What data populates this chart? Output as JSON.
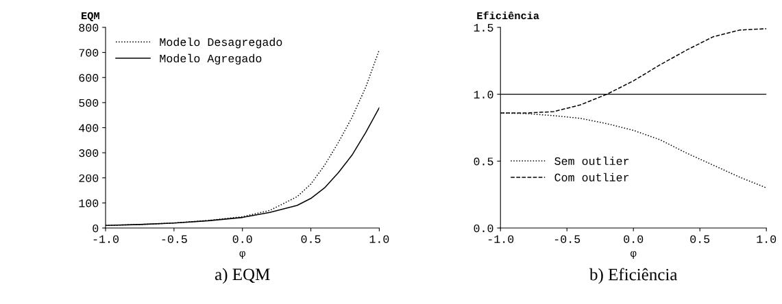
{
  "chart_data": [
    {
      "type": "line",
      "ylabel": "EQM",
      "xlabel": "φ",
      "annotations": [
        "a) EQM"
      ],
      "xlim": [
        -1.0,
        1.0
      ],
      "xticks": [
        {
          "value": -1.0,
          "label": "-1.0"
        },
        {
          "value": -0.5,
          "label": "-0.5"
        },
        {
          "value": 0.0,
          "label": "0.0"
        },
        {
          "value": 0.5,
          "label": "0.5"
        },
        {
          "value": 1.0,
          "label": "1.0"
        }
      ],
      "ylim": [
        0,
        800
      ],
      "yticks": [
        0,
        100,
        200,
        300,
        400,
        500,
        600,
        700,
        800
      ],
      "grid": false,
      "legend": "top left",
      "x": [
        -1.0,
        -0.75,
        -0.5,
        -0.25,
        0.0,
        0.2,
        0.4,
        0.5,
        0.6,
        0.7,
        0.8,
        0.9,
        1.0
      ],
      "series": [
        {
          "name": "Modelo Desagregado",
          "color": "#000000",
          "line_style": "dotted",
          "values": [
            10,
            14,
            20,
            30,
            45,
            70,
            125,
            175,
            250,
            340,
            440,
            560,
            710
          ]
        },
        {
          "name": "Modelo Agregado",
          "color": "#000000",
          "line_style": "solid",
          "values": [
            10,
            14,
            20,
            29,
            42,
            62,
            90,
            118,
            160,
            220,
            290,
            380,
            480
          ]
        }
      ]
    },
    {
      "type": "line",
      "ylabel": "Eficiência",
      "xlabel": "φ",
      "annotations": [
        "b) Eficiência"
      ],
      "xlim": [
        -1.0,
        1.0
      ],
      "xticks": [
        {
          "value": -1.0,
          "label": "-1.0"
        },
        {
          "value": -0.5,
          "label": "-0.5"
        },
        {
          "value": 0.0,
          "label": "0.0"
        },
        {
          "value": 0.5,
          "label": "0.5"
        },
        {
          "value": 1.0,
          "label": "1.0"
        }
      ],
      "ylim": [
        0.0,
        1.5
      ],
      "yticks": [
        {
          "value": 0.0,
          "label": "0.0"
        },
        {
          "value": 0.5,
          "label": "0.5"
        },
        {
          "value": 1.0,
          "label": "1.0"
        },
        {
          "value": 1.5,
          "label": "1.5"
        }
      ],
      "grid": false,
      "legend": "bottom left",
      "ref_lines": [
        {
          "axis": "y",
          "value": 1.0,
          "color": "#000000",
          "line_style": "solid"
        }
      ],
      "x": [
        -1.0,
        -0.8,
        -0.6,
        -0.4,
        -0.2,
        0.0,
        0.2,
        0.4,
        0.6,
        0.8,
        1.0
      ],
      "series": [
        {
          "name": "Sem outlier",
          "color": "#000000",
          "line_style": "dotted",
          "values": [
            0.86,
            0.855,
            0.84,
            0.82,
            0.78,
            0.73,
            0.66,
            0.56,
            0.47,
            0.38,
            0.3
          ]
        },
        {
          "name": "Com outlier",
          "color": "#000000",
          "line_style": "dashed",
          "values": [
            0.86,
            0.86,
            0.87,
            0.92,
            1.0,
            1.1,
            1.22,
            1.33,
            1.43,
            1.48,
            1.49
          ]
        }
      ]
    }
  ]
}
